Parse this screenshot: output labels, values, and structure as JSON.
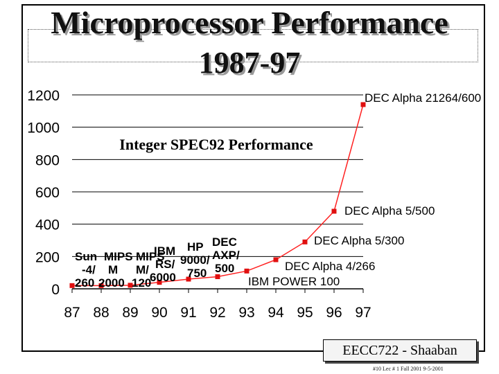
{
  "slide": {
    "title_line1": "Microprocessor Performance",
    "title_line2": "1987-97",
    "footer_label": "EECC722 - Shaaban",
    "footer_note": "#10   Lec # 1   Fall 2001  9-5-2001"
  },
  "chart_data": {
    "type": "line",
    "title": "Integer SPEC92 Performance",
    "xlabel": "",
    "ylabel": "",
    "x": [
      87,
      88,
      89,
      90,
      91,
      92,
      93,
      94,
      95,
      96,
      97
    ],
    "x_ticks": [
      "87",
      "88",
      "89",
      "90",
      "91",
      "92",
      "93",
      "94",
      "95",
      "96",
      "97"
    ],
    "y_ticks": [
      "0",
      "200",
      "400",
      "600",
      "800",
      "1000",
      "1200"
    ],
    "ylim": [
      0,
      1200
    ],
    "grid": true,
    "legend": "none",
    "colors": {
      "line": "#ff2020",
      "marker": "#e01010",
      "grid": "#000000",
      "text": "#000000"
    },
    "series": [
      {
        "values": [
          20,
          20,
          22,
          40,
          60,
          75,
          110,
          180,
          290,
          480,
          1140
        ]
      }
    ],
    "annotations": [
      {
        "id": "sun",
        "lines": [
          "Sun",
          "-4/",
          "260"
        ],
        "x": 87,
        "y": 20
      },
      {
        "id": "mips-m2000",
        "lines": [
          "MIPS",
          "M",
          "2000"
        ],
        "x": 88,
        "y": 20
      },
      {
        "id": "mips-m120",
        "lines": [
          "MIPS",
          "M/",
          "120"
        ],
        "x": 89,
        "y": 22
      },
      {
        "id": "ibm-rs6000",
        "lines": [
          "IBM",
          "RS/",
          "6000"
        ],
        "x": 90,
        "y": 40
      },
      {
        "id": "hp-9000",
        "lines": [
          "HP",
          "9000/",
          "750"
        ],
        "x": 91,
        "y": 60
      },
      {
        "id": "dec-axp",
        "lines": [
          "DEC",
          "AXP/",
          "500"
        ],
        "x": 92,
        "y": 75
      },
      {
        "id": "ibm-power",
        "lines": [
          "IBM POWER 100"
        ],
        "x": 93,
        "y": 110
      },
      {
        "id": "alpha-4-266",
        "lines": [
          "DEC Alpha 4/266"
        ],
        "x": 94,
        "y": 180
      },
      {
        "id": "alpha-5-300",
        "lines": [
          "DEC Alpha 5/300"
        ],
        "x": 95,
        "y": 290
      },
      {
        "id": "alpha-5-500",
        "lines": [
          "DEC Alpha 5/500"
        ],
        "x": 96,
        "y": 480
      },
      {
        "id": "alpha-21264",
        "lines": [
          "DEC Alpha 21264/600"
        ],
        "x": 97,
        "y": 1140
      }
    ]
  }
}
